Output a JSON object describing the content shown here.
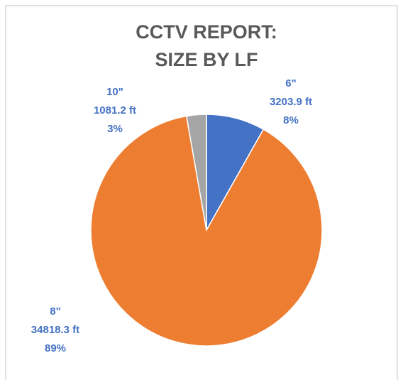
{
  "chart_data": {
    "type": "pie",
    "title": [
      "CCTV REPORT:",
      "SIZE BY LF"
    ],
    "categories": [
      "6\"",
      "8\"",
      "10\""
    ],
    "values": [
      3203.9,
      34818.3,
      1081.2
    ],
    "value_labels": [
      "3203.9 ft",
      "34818.3 ft",
      "1081.2 ft"
    ],
    "percentages": [
      8,
      89,
      3
    ],
    "percentage_labels": [
      "8%",
      "89%",
      "3%"
    ],
    "colors": [
      "#4472c4",
      "#ed7d31",
      "#a5a5a5"
    ],
    "label_color": "#4472c4"
  }
}
